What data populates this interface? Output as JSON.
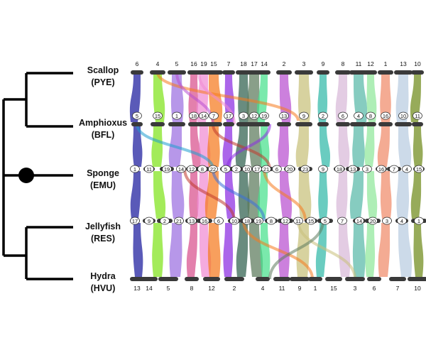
{
  "species": [
    {
      "name": "Scallop",
      "code": "(PYE)"
    },
    {
      "name": "Amphioxus",
      "code": "(BFL)"
    },
    {
      "name": "Sponge",
      "code": "(EMU)"
    },
    {
      "name": "Jellyfish",
      "code": "(RES)"
    },
    {
      "name": "Hydra",
      "code": "(HVU)"
    }
  ],
  "rows": {
    "scallop_top": [
      "6",
      "4",
      "5",
      "16",
      "19",
      "15",
      "7",
      "18",
      "17",
      "14",
      "2",
      "3",
      "9",
      "8",
      "11",
      "12",
      "1",
      "13",
      "10"
    ],
    "amphioxus": [
      "5",
      "15",
      "1",
      "18",
      "14",
      "7",
      "17",
      "3",
      "12",
      "19",
      "13",
      "9",
      "2",
      "6",
      "4",
      "8",
      "16",
      "10",
      "11"
    ],
    "sponge": [
      "1",
      "11",
      "19",
      "14",
      "12",
      "8",
      "22",
      "5",
      "2",
      "10",
      "17",
      "21",
      "6",
      "20",
      "23",
      "9",
      "18",
      "13",
      "3",
      "16",
      "7",
      "4",
      "15"
    ],
    "jellyfish": [
      "17",
      "9",
      "2",
      "21",
      "13",
      "16",
      "6",
      "10",
      "18",
      "19",
      "8",
      "12",
      "11",
      "15",
      "5",
      "7",
      "14",
      "20",
      "3",
      "4",
      "1"
    ],
    "hydra_bottom": [
      "13",
      "14",
      "5",
      "8",
      "12",
      "2",
      "4",
      "11",
      "9",
      "1",
      "15",
      "3",
      "6",
      "7",
      "10"
    ]
  },
  "node_marker": "filled-circle"
}
